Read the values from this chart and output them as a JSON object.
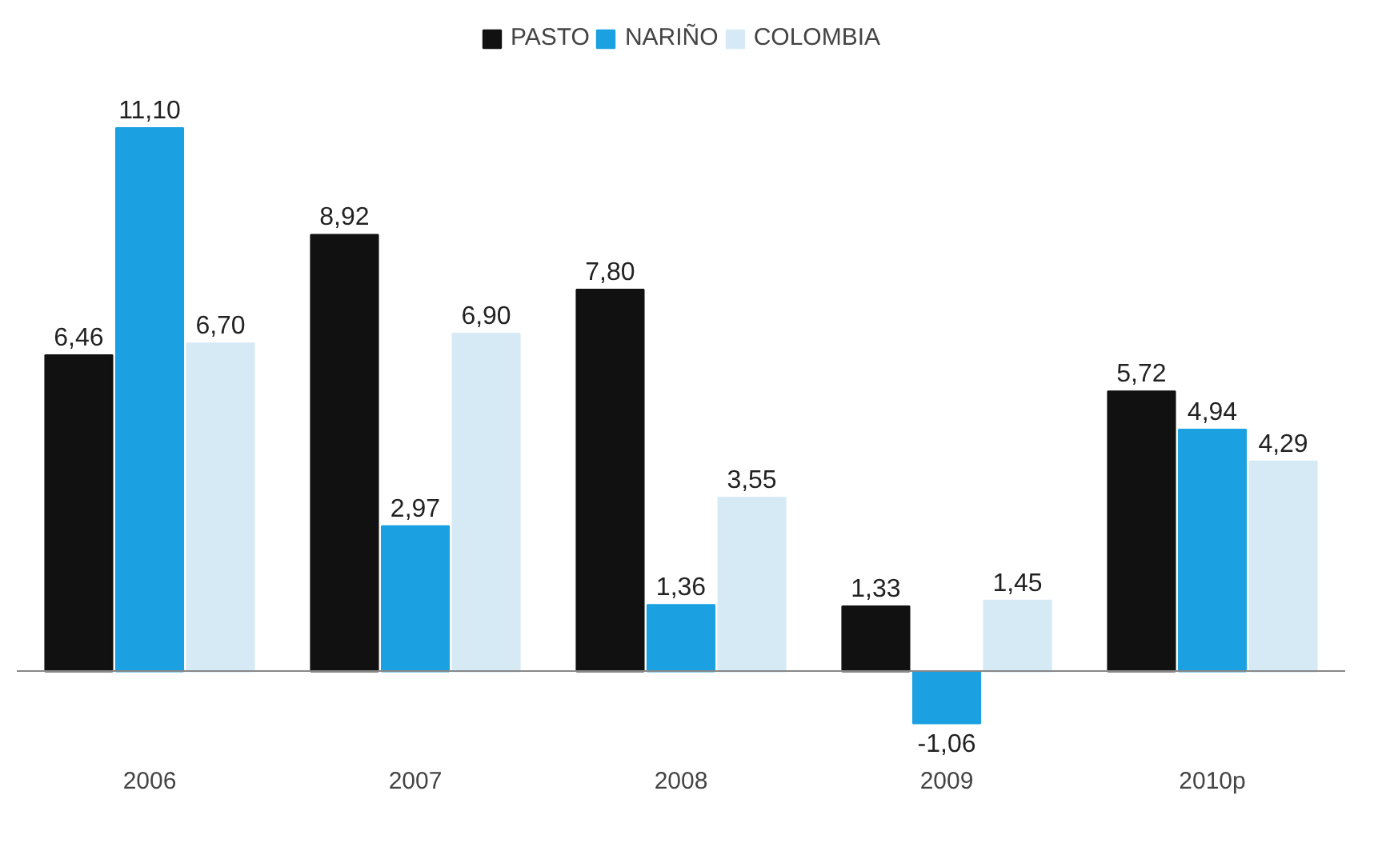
{
  "chart_data": {
    "type": "bar",
    "categories": [
      "2006",
      "2007",
      "2008",
      "2009",
      "2010p"
    ],
    "series": [
      {
        "name": "PASTO",
        "color": "#111111",
        "values": [
          6.46,
          8.92,
          7.8,
          1.33,
          5.72
        ],
        "value_labels": [
          "6,46",
          "8,92",
          "7,80",
          "1,33",
          "5,72"
        ]
      },
      {
        "name": "NARIÑO",
        "color": "#1ba1e2",
        "values": [
          11.1,
          2.97,
          1.36,
          -1.06,
          4.94
        ],
        "value_labels": [
          "11,10",
          "2,97",
          "1,36",
          "-1,06",
          "4,94"
        ]
      },
      {
        "name": "COLOMBIA",
        "color": "#d6eaf6",
        "values": [
          6.7,
          6.9,
          3.55,
          1.45,
          4.29
        ],
        "value_labels": [
          "6,70",
          "6,90",
          "3,55",
          "1,45",
          "4,29"
        ]
      }
    ],
    "legend": "top"
  }
}
